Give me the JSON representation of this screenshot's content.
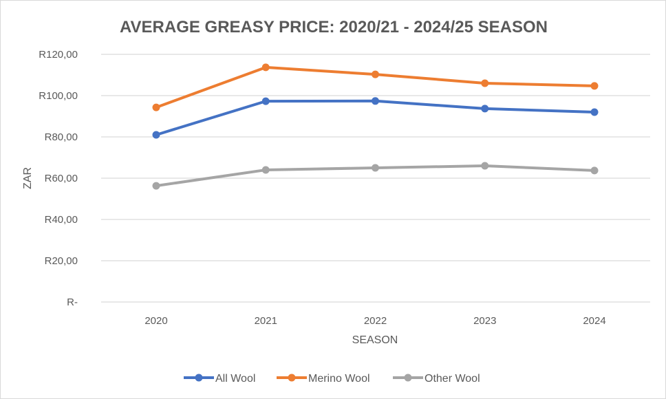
{
  "chart_data": {
    "type": "line",
    "title": "AVERAGE GREASY PRICE: 2020/21 - 2024/25 SEASON",
    "xlabel": "SEASON",
    "ylabel": "ZAR",
    "categories": [
      "2020",
      "2021",
      "2022",
      "2023",
      "2024"
    ],
    "ylim": [
      0,
      120
    ],
    "yticks": [
      0,
      20,
      40,
      60,
      80,
      100,
      120
    ],
    "ytick_labels": [
      "R-",
      "R20,00",
      "R40,00",
      "R60,00",
      "R80,00",
      "R100,00",
      "R120,00"
    ],
    "grid": true,
    "legend_position": "bottom",
    "series": [
      {
        "name": "All Wool",
        "color": "#4472c4",
        "values": [
          81.0,
          97.3,
          97.4,
          93.7,
          92.0
        ]
      },
      {
        "name": "Merino Wool",
        "color": "#ed7d31",
        "values": [
          94.3,
          113.7,
          110.3,
          106.0,
          104.7
        ]
      },
      {
        "name": "Other Wool",
        "color": "#a5a5a5",
        "values": [
          56.3,
          64.0,
          65.0,
          66.0,
          63.7
        ]
      }
    ]
  }
}
